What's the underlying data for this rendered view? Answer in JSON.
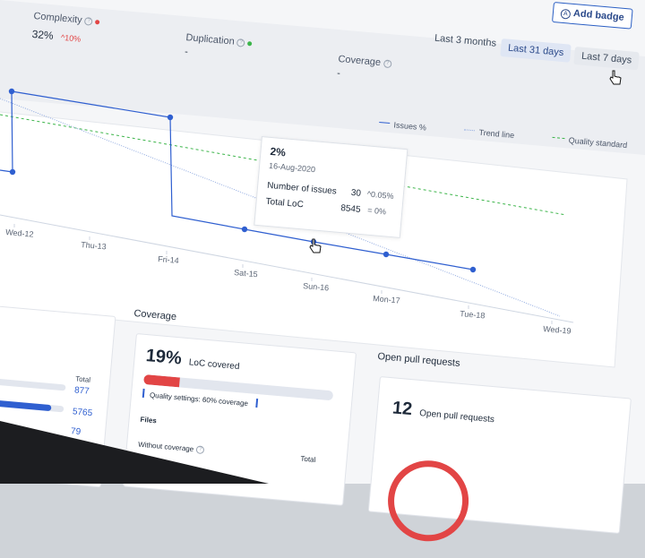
{
  "header": {
    "complexity": {
      "label": "Complexity",
      "value": "32%",
      "delta": "^10%"
    },
    "duplication": {
      "label": "Duplication",
      "value": "-"
    },
    "coverage": {
      "label": "Coverage",
      "value": "-"
    },
    "add_badge": "Add badge",
    "ranges": [
      "Last 3 months",
      "Last 31 days",
      "Last 7 days"
    ]
  },
  "legend": [
    "Issues %",
    "Trend line",
    "Quality standard"
  ],
  "tooltip": {
    "title": "2%",
    "date": "16-Aug-2020",
    "rows": [
      {
        "label": "Number of issues",
        "value": "30",
        "delta": "^0.05%"
      },
      {
        "label": "Total LoC",
        "value": "8545",
        "delta": "= 0%"
      }
    ]
  },
  "chart_data": {
    "type": "line",
    "x": [
      "Wed-12",
      "Thu-13",
      "Fri-14",
      "Sat-15",
      "Sun-16",
      "Mon-17",
      "Tue-18",
      "Wed-19"
    ],
    "series": [
      {
        "name": "Issues %"
      },
      {
        "name": "Trend line"
      },
      {
        "name": "Quality standard"
      }
    ],
    "colors": {
      "issues": "#2f5fd0",
      "trend": "#8fa9e0",
      "standard": "#3cb54a"
    }
  },
  "coverage_card": {
    "section_title": "Coverage",
    "percent": "19%",
    "loc_label": "LoC covered",
    "quality_setting": "Quality settings: 60% coverage",
    "files_label": "Files",
    "without_coverage": "Without coverage",
    "total_label": "Total",
    "progress": 0.19
  },
  "left_card": {
    "total_label": "Total",
    "values": [
      "877",
      "5765",
      "79"
    ]
  },
  "pr_card": {
    "section_title": "Open pull requests",
    "count": "12",
    "label": "Open pull requests"
  }
}
